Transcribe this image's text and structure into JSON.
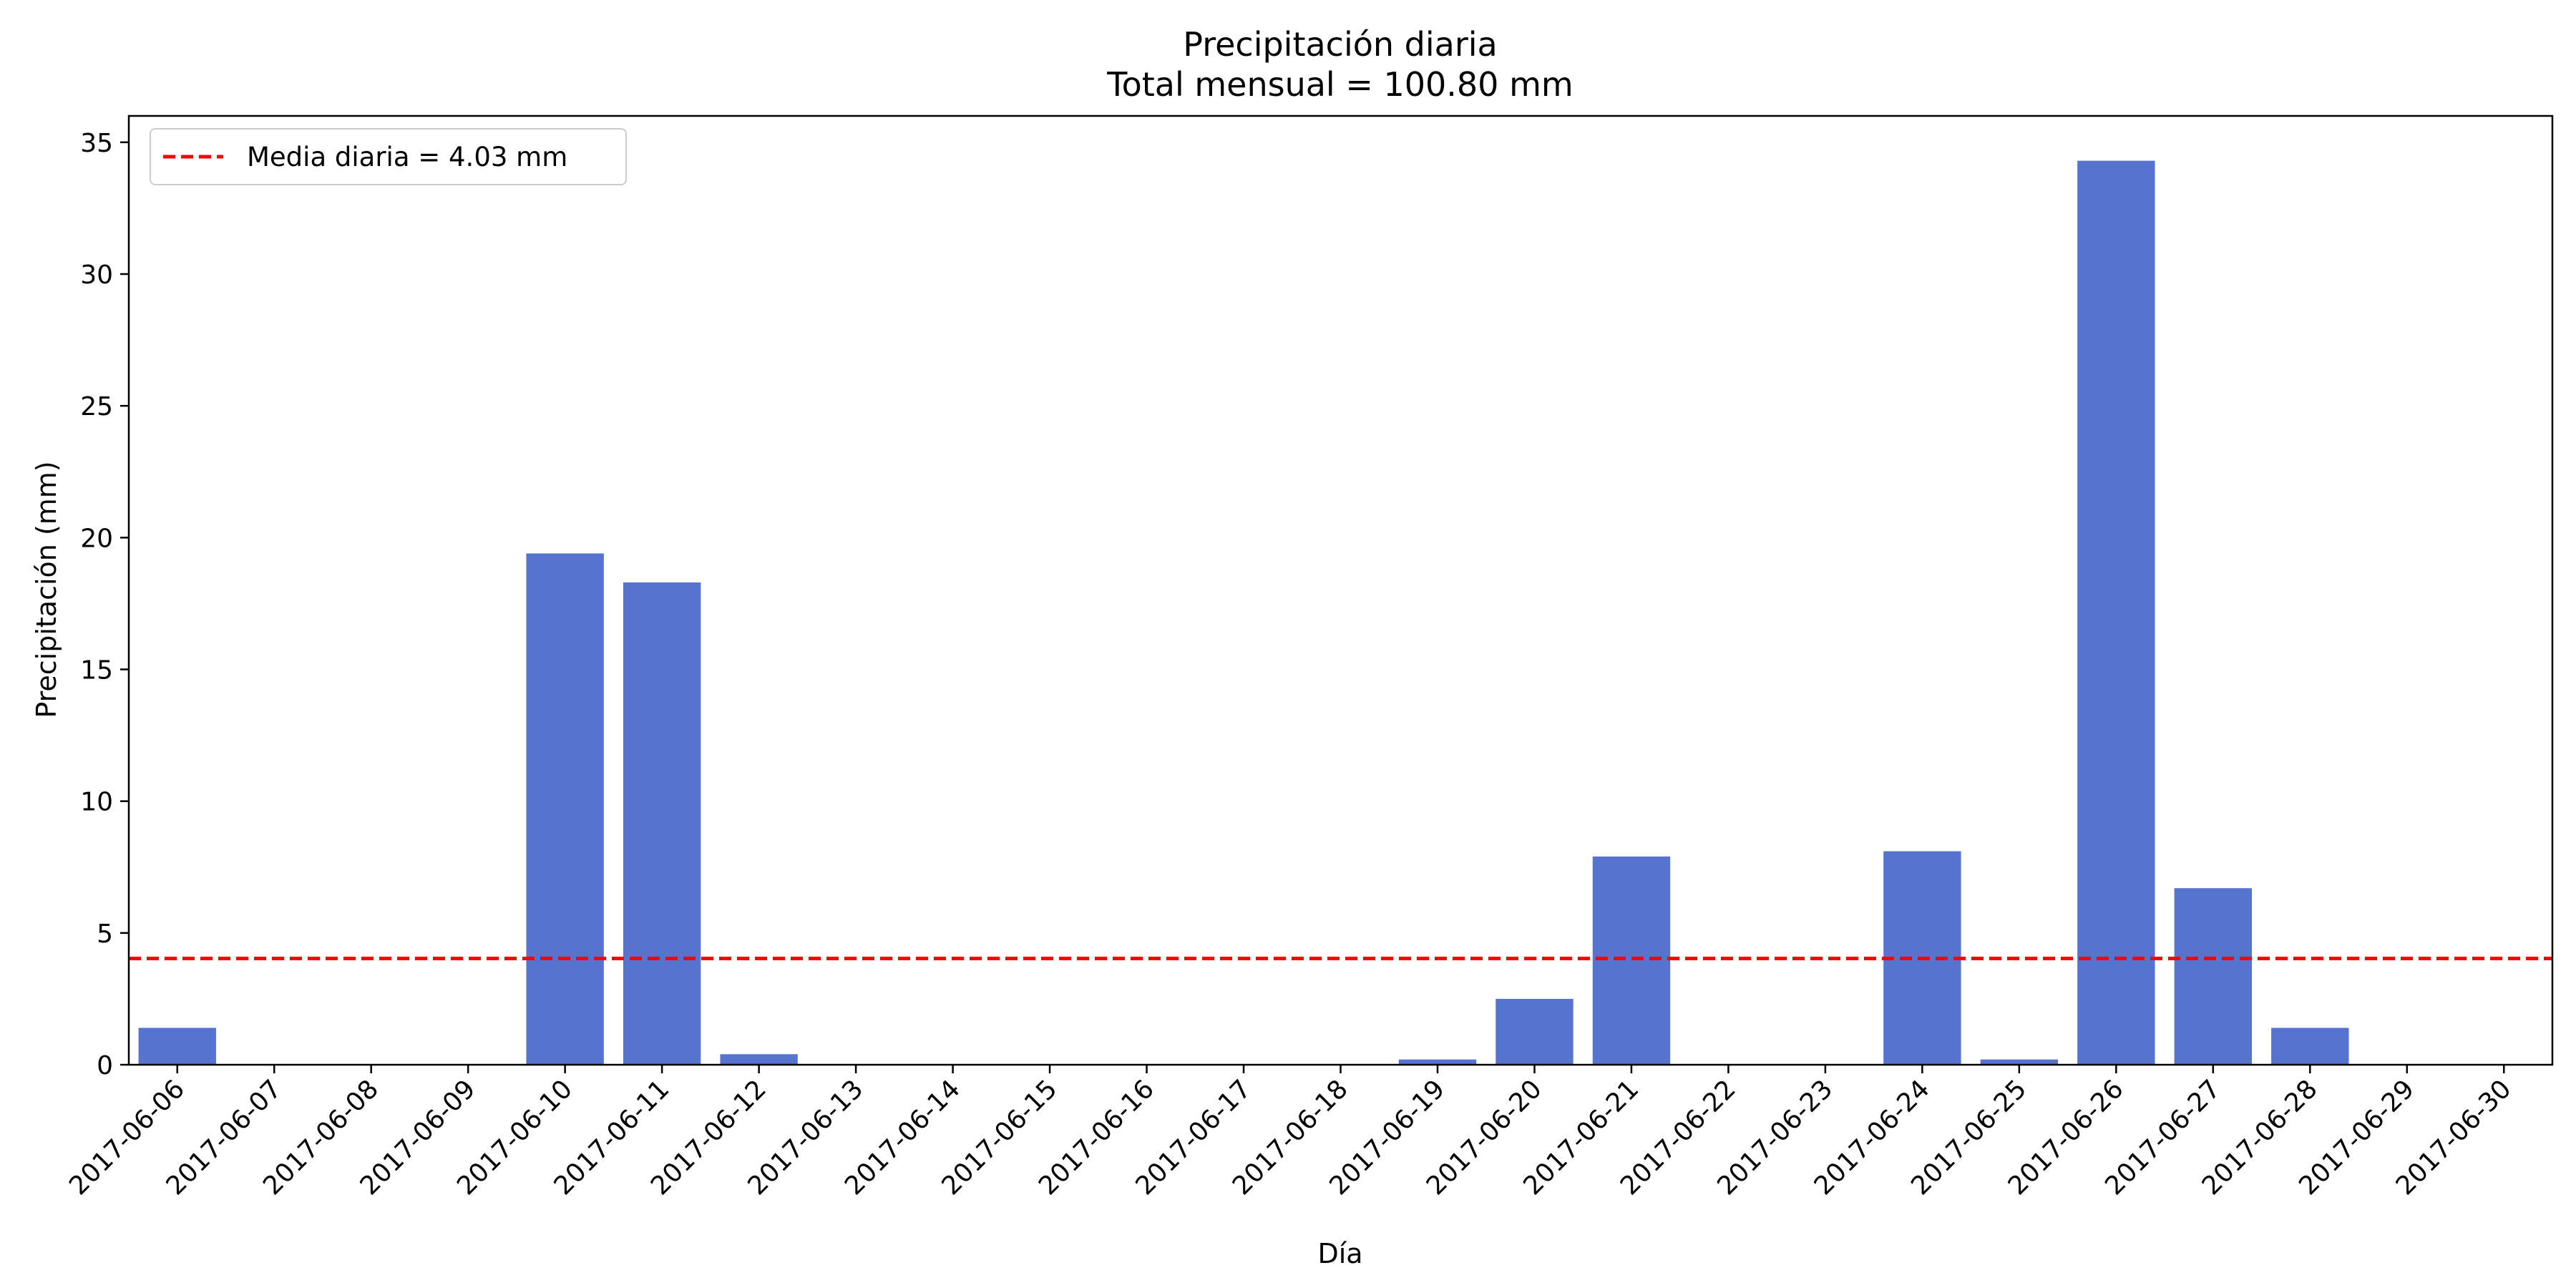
{
  "chart_data": {
    "type": "bar",
    "title": "Precipitación diaria",
    "subtitle": "Total mensual = 100.80 mm",
    "xlabel": "Día",
    "ylabel": "Precipitación (mm)",
    "ylim": [
      0,
      36
    ],
    "yticks": [
      0,
      5,
      10,
      15,
      20,
      25,
      30,
      35
    ],
    "grid": false,
    "categories": [
      "2017-06-06",
      "2017-06-07",
      "2017-06-08",
      "2017-06-09",
      "2017-06-10",
      "2017-06-11",
      "2017-06-12",
      "2017-06-13",
      "2017-06-14",
      "2017-06-15",
      "2017-06-16",
      "2017-06-17",
      "2017-06-18",
      "2017-06-19",
      "2017-06-20",
      "2017-06-21",
      "2017-06-22",
      "2017-06-23",
      "2017-06-24",
      "2017-06-25",
      "2017-06-26",
      "2017-06-27",
      "2017-06-28",
      "2017-06-29",
      "2017-06-30"
    ],
    "values": [
      1.4,
      0,
      0,
      0,
      19.4,
      18.3,
      0.4,
      0,
      0,
      0,
      0,
      0,
      0,
      0.2,
      2.5,
      7.9,
      0,
      0,
      8.1,
      0.2,
      34.3,
      6.7,
      1.4,
      0,
      0
    ],
    "bar_color": "#5573cf",
    "reference_line": {
      "value": 4.03,
      "label": "Media diaria = 4.03 mm",
      "color": "#ff0000",
      "style": "dashed"
    },
    "legend_position": "top-left"
  }
}
